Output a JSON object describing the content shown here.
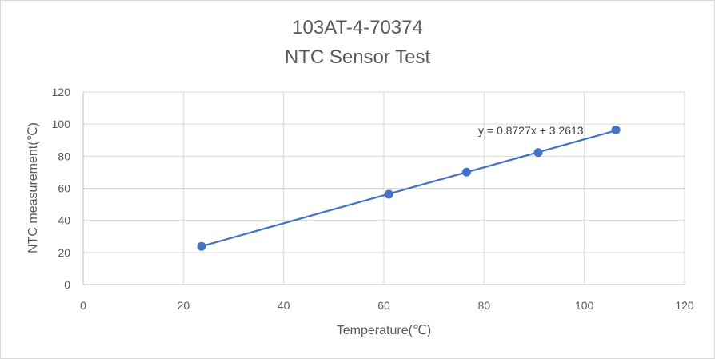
{
  "chart_data": {
    "type": "scatter",
    "title": "103AT-4-70374",
    "subtitle": "NTC Sensor Test",
    "xlabel": "Temperature(℃)",
    "ylabel": "NTC measurement(℃)",
    "xlim": [
      0,
      120
    ],
    "ylim": [
      0,
      120
    ],
    "xticks": [
      0,
      20,
      40,
      60,
      80,
      100,
      120
    ],
    "yticks": [
      0,
      20,
      40,
      60,
      80,
      100,
      120
    ],
    "grid": true,
    "legend": "none",
    "series": [
      {
        "color": "#4472c4",
        "points": [
          {
            "x": 23.6,
            "y": 23.8
          },
          {
            "x": 61.0,
            "y": 56.3
          },
          {
            "x": 76.5,
            "y": 70.1
          },
          {
            "x": 90.8,
            "y": 82.3
          },
          {
            "x": 106.3,
            "y": 96.4
          }
        ]
      }
    ],
    "trendline": {
      "type": "linear",
      "slope": 0.8727,
      "intercept": 3.2613,
      "equation": "y = 0.8727x + 3.2613",
      "color": "#4472c4"
    }
  }
}
